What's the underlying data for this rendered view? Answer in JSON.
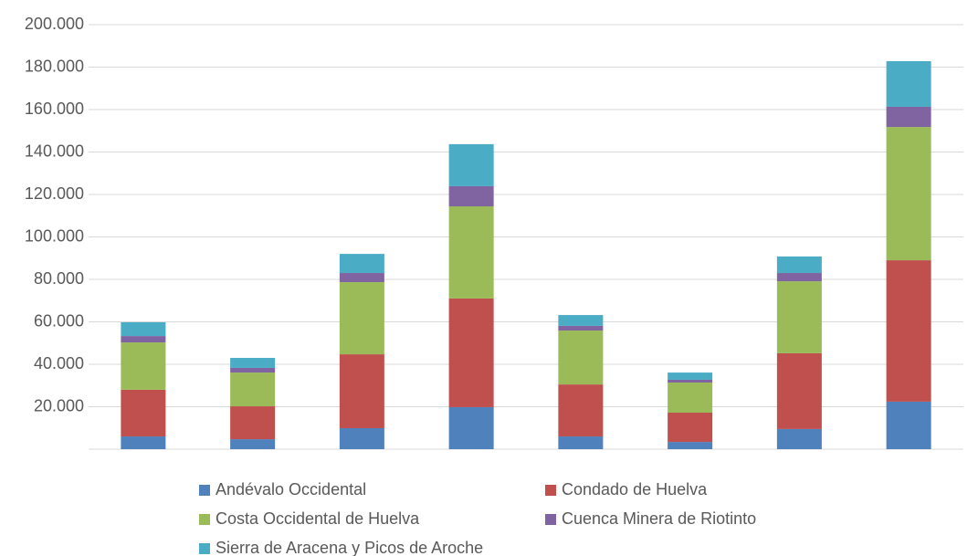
{
  "chart_data": {
    "type": "stacked_bar",
    "categories": [
      null,
      null,
      null,
      null,
      null,
      null,
      null,
      null
    ],
    "series": [
      {
        "name": "Andévalo Occidental",
        "color": "#4f81bd",
        "values": [
          6000,
          4700,
          9900,
          19800,
          6000,
          3400,
          9500,
          22400
        ]
      },
      {
        "name": "Condado de Huelva",
        "color": "#c0504d",
        "values": [
          22000,
          15500,
          34800,
          51200,
          24500,
          13800,
          35700,
          66600
        ]
      },
      {
        "name": "Costa Occidental de Huelva",
        "color": "#9bbb59",
        "values": [
          22300,
          15900,
          34000,
          43400,
          25400,
          14200,
          33900,
          62800
        ]
      },
      {
        "name": "Cuenca Minera de Riotinto",
        "color": "#8064a2",
        "values": [
          3000,
          2200,
          4300,
          9500,
          2200,
          1300,
          3900,
          9500
        ]
      },
      {
        "name": "Sierra de Aracena y Picos de Aroche",
        "color": "#4bacc6",
        "values": [
          6500,
          4700,
          9000,
          19800,
          5100,
          3400,
          7800,
          21500
        ]
      }
    ],
    "ylim": [
      0,
      200000
    ],
    "yticks": [
      {
        "value": 20000,
        "label": "20.000"
      },
      {
        "value": 40000,
        "label": "40.000"
      },
      {
        "value": 60000,
        "label": "60.000"
      },
      {
        "value": 80000,
        "label": "80.000"
      },
      {
        "value": 100000,
        "label": "100.000"
      },
      {
        "value": 120000,
        "label": "120.000"
      },
      {
        "value": 140000,
        "label": "140.000"
      },
      {
        "value": 160000,
        "label": "160.000"
      },
      {
        "value": 180000,
        "label": "180.000"
      },
      {
        "value": 200000,
        "label": "200.000"
      }
    ],
    "grid": true,
    "legend": "bottom"
  }
}
